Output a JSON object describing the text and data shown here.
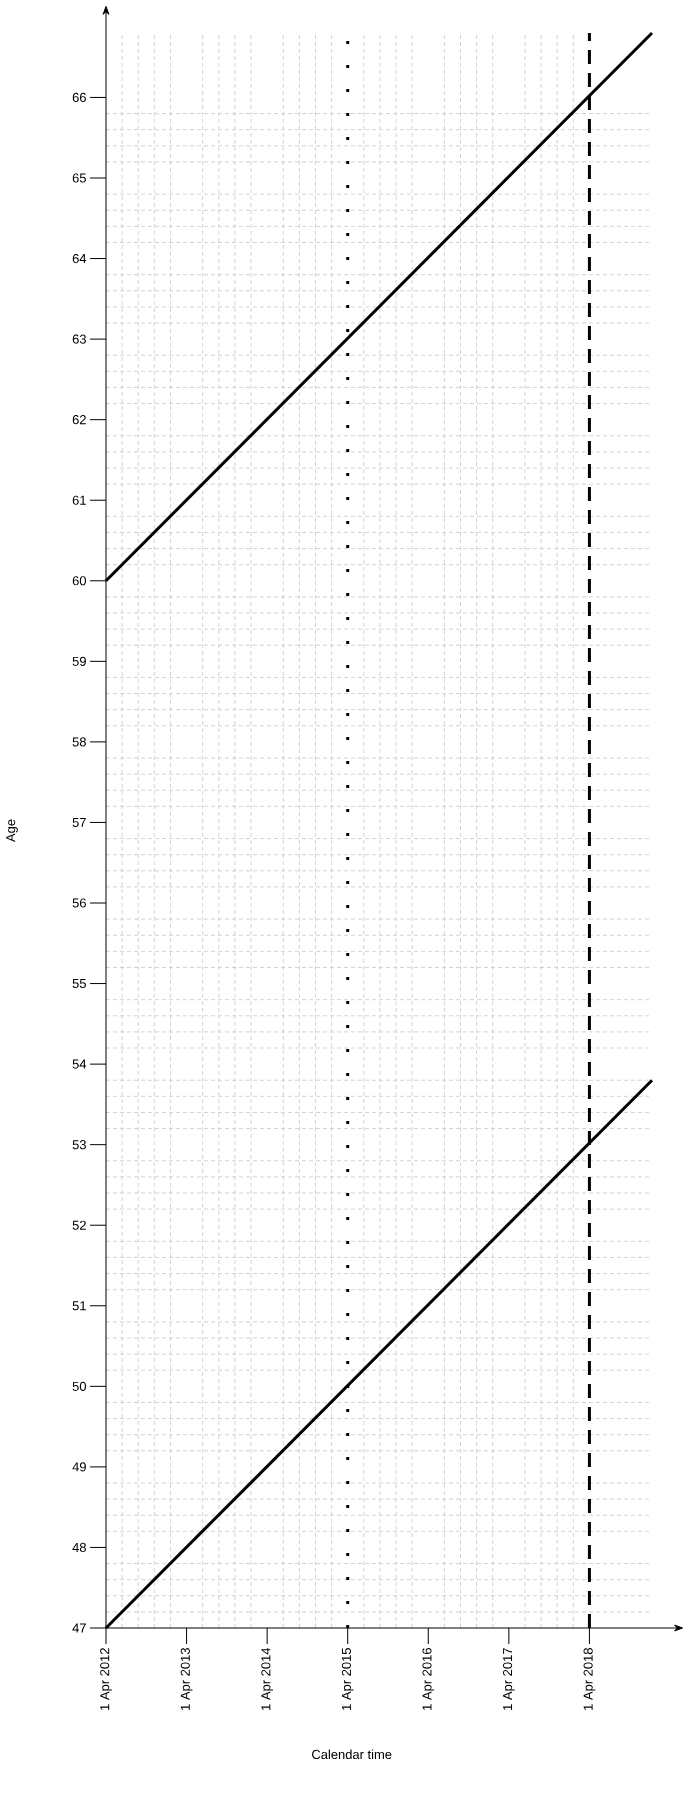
{
  "chart_data": {
    "type": "line",
    "xlabel": "Calendar time",
    "ylabel": "Age",
    "xlim": [
      "2012-04-01",
      "2019-01-11"
    ],
    "ylim": [
      47,
      66.8
    ],
    "xticks": [
      {
        "value": "2012-04-01",
        "label": "1 Apr 2012"
      },
      {
        "value": "2013-04-01",
        "label": "1 Apr 2013"
      },
      {
        "value": "2014-04-01",
        "label": "1 Apr 2014"
      },
      {
        "value": "2015-04-01",
        "label": "1 Apr 2015"
      },
      {
        "value": "2016-04-01",
        "label": "1 Apr 2016"
      },
      {
        "value": "2017-04-01",
        "label": "1 Apr 2017"
      },
      {
        "value": "2018-04-01",
        "label": "1 Apr 2018"
      }
    ],
    "yticks": [
      47,
      48,
      49,
      50,
      51,
      52,
      53,
      54,
      55,
      56,
      57,
      58,
      59,
      60,
      61,
      62,
      63,
      64,
      65,
      66
    ],
    "series": [
      {
        "color": "#000000",
        "x": [
          "2012-04-01",
          "2019-01-11"
        ],
        "values": [
          60,
          66.8
        ]
      },
      {
        "color": "#000000",
        "x": [
          "2012-04-01",
          "2019-01-11"
        ],
        "values": [
          47,
          53.8
        ]
      }
    ],
    "ref_lines": [
      {
        "axis": "x",
        "value": "2015-04-01",
        "color": "#000000",
        "line_style": "dotted"
      },
      {
        "axis": "x",
        "value": "2018-04-01",
        "color": "#000000",
        "line_style": "dashed"
      }
    ],
    "grid": true,
    "marker": "none",
    "line_style": "solid"
  }
}
